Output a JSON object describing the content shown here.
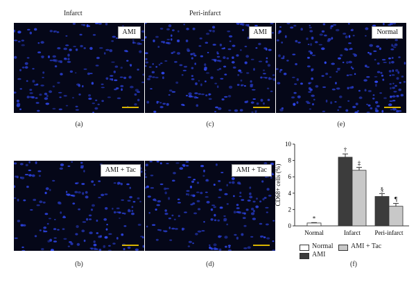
{
  "headings": {
    "infarct": "Infarct",
    "peri_infarct": "Peri-infarct"
  },
  "panels": [
    {
      "id": "a",
      "tag": "AMI",
      "caption": "(a)"
    },
    {
      "id": "c",
      "tag": "AMI",
      "caption": "(c)"
    },
    {
      "id": "e",
      "tag": "Normal",
      "caption": "(e)"
    },
    {
      "id": "b",
      "tag": "AMI + Tac",
      "caption": "(b)"
    },
    {
      "id": "d",
      "tag": "AMI + Tac",
      "caption": "(d)"
    }
  ],
  "chart_caption": "(f)",
  "colors": {
    "normal": "#ffffff",
    "ami": "#3c3c3c",
    "ami_tac": "#c8c8c8",
    "nuclei": "#2f48d8",
    "scale_bar": "#d8b400"
  },
  "chart_data": {
    "type": "bar",
    "ylabel": "CD68+ cells (%)",
    "ylim": [
      0,
      10
    ],
    "yticks": [
      0,
      2,
      4,
      6,
      8,
      10
    ],
    "categories": [
      "Normal",
      "Infarct",
      "Peri-infarct"
    ],
    "series": [
      {
        "name": "Normal",
        "values": [
          0.35,
          null,
          null
        ],
        "errors": [
          0.05,
          null,
          null
        ],
        "marks": [
          "*",
          null,
          null
        ]
      },
      {
        "name": "AMI",
        "values": [
          null,
          8.4,
          3.6
        ],
        "errors": [
          null,
          0.4,
          0.35
        ],
        "marks": [
          null,
          "†",
          "§"
        ]
      },
      {
        "name": "AMI + Tac",
        "values": [
          null,
          6.8,
          2.4
        ],
        "errors": [
          null,
          0.35,
          0.35
        ],
        "marks": [
          null,
          "‡",
          "¶"
        ]
      }
    ],
    "legend": [
      "Normal",
      "AMI + Tac",
      "AMI"
    ]
  }
}
